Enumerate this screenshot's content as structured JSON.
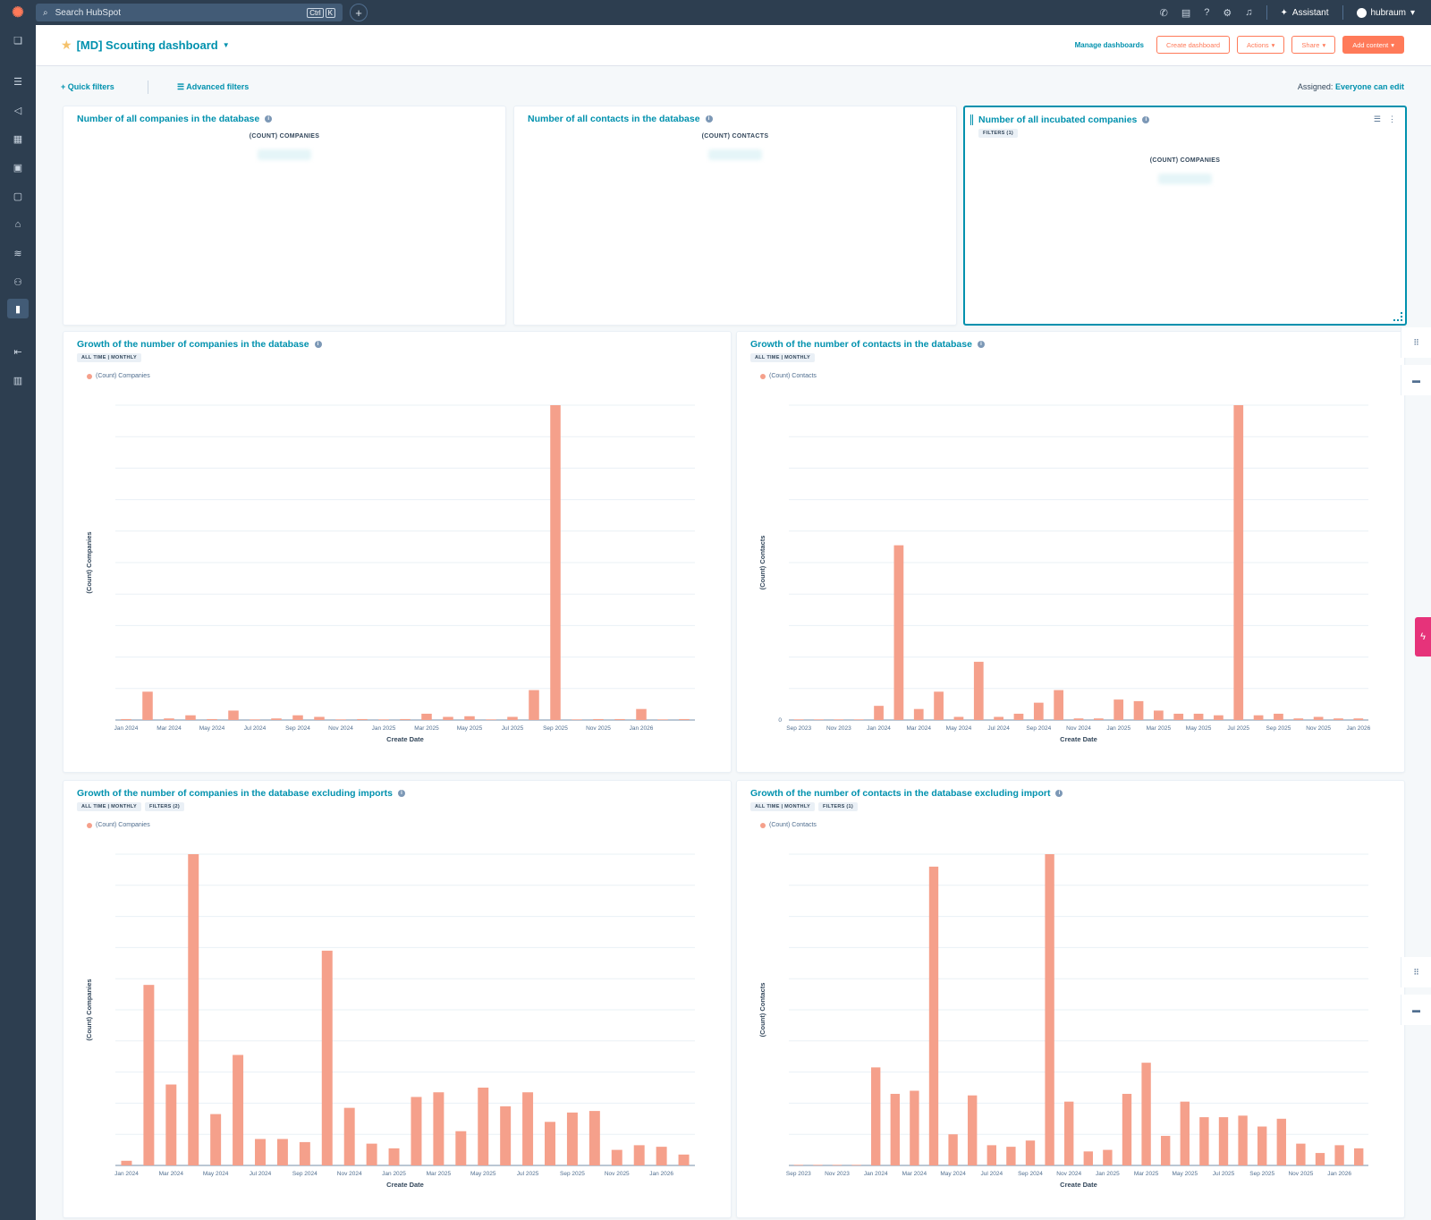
{
  "topbar": {
    "search_placeholder": "Search HubSpot",
    "kbd_ctrl": "Ctrl",
    "kbd_k": "K",
    "assistant_label": "Assistant",
    "account_label": "hubraum",
    "icons": [
      "phone-icon",
      "marketplace-icon",
      "help-icon",
      "settings-icon",
      "bell-icon"
    ]
  },
  "header": {
    "title": "[MD] Scouting dashboard",
    "manage_label": "Manage dashboards",
    "create_label": "Create dashboard",
    "actions_label": "Actions",
    "share_label": "Share",
    "add_label": "Add content"
  },
  "filters": {
    "quick_label": "Quick filters",
    "advanced_label": "Advanced filters",
    "assigned_label": "Assigned:",
    "assigned_value": "Everyone can edit"
  },
  "cards": {
    "companies_total": {
      "title": "Number of all companies in the database",
      "label": "(COUNT) COMPANIES"
    },
    "contacts_total": {
      "title": "Number of all contacts in the database",
      "label": "(COUNT) CONTACTS"
    },
    "incubated": {
      "title": "Number of all incubated companies",
      "filters": "FILTERS (1)",
      "label": "(COUNT) COMPANIES"
    }
  },
  "chart_data": [
    {
      "type": "bar",
      "title": "Growth of the number of companies in the database",
      "pills": [
        "ALL TIME | MONTHLY"
      ],
      "legend": "(Count) Companies",
      "ylabel": "(Count) Companies",
      "xlabel": "Create Date",
      "x_tick_labels": [
        "Jan 2024",
        "Mar 2024",
        "May 2024",
        "Jul 2024",
        "Sep 2024",
        "Nov 2024",
        "Jan 2025",
        "Mar 2025",
        "May 2025",
        "Jul 2025",
        "Sep 2025",
        "Nov 2025",
        "Jan 2026"
      ],
      "values": [
        0.3,
        9,
        0.5,
        1.5,
        0.3,
        3,
        0.2,
        0.5,
        1.5,
        1,
        0.2,
        0.3,
        0.2,
        0.3,
        2,
        1,
        1.2,
        0.2,
        1,
        9.5,
        100,
        0.2,
        0.3,
        0.3,
        3.5,
        0.2,
        0.3
      ],
      "ymax": 100,
      "color": "#f5a08b"
    },
    {
      "type": "bar",
      "title": "Growth of the number of contacts in the database",
      "pills": [
        "ALL TIME | MONTHLY"
      ],
      "legend": "(Count) Contacts",
      "ylabel": "(Count) Contacts",
      "xlabel": "Create Date",
      "x_tick_labels": [
        "Sep 2023",
        "Nov 2023",
        "Jan 2024",
        "Mar 2024",
        "May 2024",
        "Jul 2024",
        "Sep 2024",
        "Nov 2024",
        "Jan 2025",
        "Mar 2025",
        "May 2025",
        "Jul 2025",
        "Sep 2025",
        "Nov 2025",
        "Jan 2026"
      ],
      "values": [
        0.2,
        0.2,
        0.2,
        0.2,
        4.5,
        55.5,
        3.5,
        9,
        1,
        18.5,
        1,
        2,
        5.5,
        9.5,
        0.5,
        0.5,
        6.5,
        6,
        3,
        2,
        2,
        1.5,
        100,
        1.5,
        2,
        0.5,
        1,
        0.5,
        0.5
      ],
      "ymax": 100,
      "y_zero_label": "0",
      "color": "#f5a08b"
    },
    {
      "type": "bar",
      "title": "Growth of the number of companies in the database excluding imports",
      "pills": [
        "ALL TIME | MONTHLY",
        "FILTERS (2)"
      ],
      "legend": "(Count) Companies",
      "ylabel": "(Count) Companies",
      "xlabel": "Create Date",
      "x_tick_labels": [
        "Jan 2024",
        "Mar 2024",
        "May 2024",
        "Jul 2024",
        "Sep 2024",
        "Nov 2024",
        "Jan 2025",
        "Mar 2025",
        "May 2025",
        "Jul 2025",
        "Sep 2025",
        "Nov 2025",
        "Jan 2026"
      ],
      "values": [
        1.5,
        58,
        26,
        100,
        16.5,
        35.5,
        8.5,
        8.5,
        7.5,
        69,
        18.5,
        7,
        5.5,
        22,
        23.5,
        11,
        25,
        19,
        23.5,
        14,
        17,
        17.5,
        5,
        6.5,
        6,
        3.5
      ],
      "ymax": 100,
      "color": "#f5a08b"
    },
    {
      "type": "bar",
      "title": "Growth of the number of contacts in the database excluding import",
      "pills": [
        "ALL TIME | MONTHLY",
        "FILTERS (1)"
      ],
      "legend": "(Count) Contacts",
      "ylabel": "(Count) Contacts",
      "xlabel": "Create Date",
      "x_tick_labels": [
        "Sep 2023",
        "Nov 2023",
        "Jan 2024",
        "Mar 2024",
        "May 2024",
        "Jul 2024",
        "Sep 2024",
        "Nov 2024",
        "Jan 2025",
        "Mar 2025",
        "May 2025",
        "Jul 2025",
        "Sep 2025",
        "Nov 2025",
        "Jan 2026"
      ],
      "values": [
        0.2,
        0.2,
        0.2,
        0.2,
        31.5,
        23,
        24,
        96,
        10,
        22.5,
        6.5,
        6,
        8,
        100,
        20.5,
        4.5,
        5,
        23,
        33,
        9.5,
        20.5,
        15.5,
        15.5,
        16,
        12.5,
        15,
        7,
        4,
        6.5,
        5.5
      ],
      "ymax": 100,
      "color": "#f5a08b"
    }
  ]
}
